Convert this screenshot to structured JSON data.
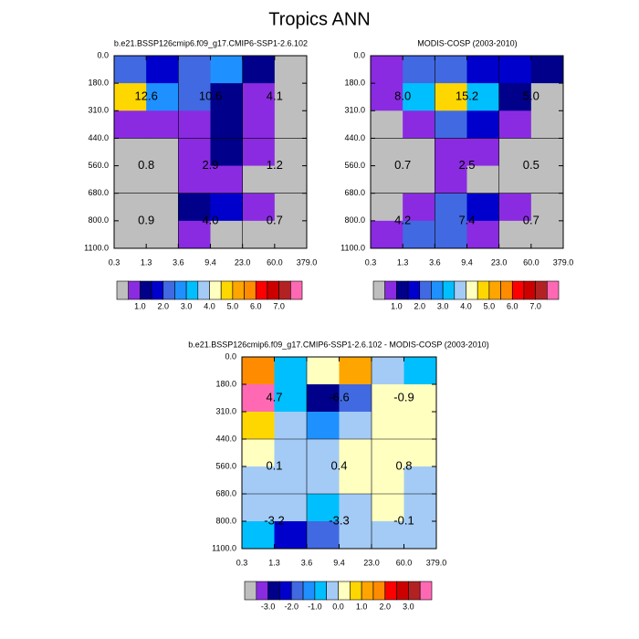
{
  "title": "Tropics ANN",
  "chart_data": [
    {
      "type": "heatmap",
      "title": "b.e21.BSSP126cmip6.f09_g17.CMIP6-SSP1-2.6.102",
      "x_edges": [
        "0.3",
        "1.3",
        "3.6",
        "9.4",
        "23.0",
        "60.0",
        "379.0"
      ],
      "y_edges": [
        "0.0",
        "180.0",
        "310.0",
        "440.0",
        "560.0",
        "680.0",
        "800.0",
        "1100.0"
      ],
      "cell_colors": [
        [
          "#4169e1",
          "#0000cd",
          "#4169e1",
          "#1e90ff",
          "#00008b",
          "#bebebe"
        ],
        [
          "#ffd700",
          "#1e90ff",
          "#4169e1",
          "#00008b",
          "#8a2be2",
          "#bebebe"
        ],
        [
          "#8a2be2",
          "#8a2be2",
          "#8a2be2",
          "#00008b",
          "#8a2be2",
          "#bebebe"
        ],
        [
          "#bebebe",
          "#bebebe",
          "#8a2be2",
          "#00008b",
          "#8a2be2",
          "#bebebe"
        ],
        [
          "#bebebe",
          "#bebebe",
          "#8a2be2",
          "#8a2be2",
          "#bebebe",
          "#bebebe"
        ],
        [
          "#bebebe",
          "#bebebe",
          "#00008b",
          "#0000cd",
          "#8a2be2",
          "#bebebe"
        ],
        [
          "#bebebe",
          "#bebebe",
          "#8a2be2",
          "#bebebe",
          "#bebebe",
          "#bebebe"
        ]
      ],
      "annotations": [
        [
          "12.6",
          "10.6",
          "4.1"
        ],
        [
          "0.8",
          "2.9",
          "1.2"
        ],
        [
          "0.9",
          "4.0",
          "0.7"
        ]
      ],
      "colorbar": {
        "colors": [
          "#bebebe",
          "#8a2be2",
          "#00008b",
          "#0000cd",
          "#4169e1",
          "#1e90ff",
          "#00bfff",
          "#a4cbf5",
          "#ffffc0",
          "#ffd700",
          "#ffa500",
          "#ff8c00",
          "#ff0000",
          "#cd0000",
          "#b22222",
          "#ff69b4"
        ],
        "labels": [
          "1.0",
          "2.0",
          "3.0",
          "4.0",
          "5.0",
          "6.0",
          "7.0"
        ]
      }
    },
    {
      "type": "heatmap",
      "title": "MODIS-COSP (2003-2010)",
      "x_edges": [
        "0.3",
        "1.3",
        "3.6",
        "9.4",
        "23.0",
        "60.0",
        "379.0"
      ],
      "y_edges": [
        "0.0",
        "180.0",
        "310.0",
        "440.0",
        "560.0",
        "680.0",
        "800.0",
        "1100.0"
      ],
      "cell_colors": [
        [
          "#8a2be2",
          "#4169e1",
          "#4169e1",
          "#0000cd",
          "#0000cd",
          "#00008b"
        ],
        [
          "#8a2be2",
          "#00bfff",
          "#ffd700",
          "#00bfff",
          "#00008b",
          "#bebebe"
        ],
        [
          "#bebebe",
          "#8a2be2",
          "#4169e1",
          "#0000cd",
          "#8a2be2",
          "#bebebe"
        ],
        [
          "#bebebe",
          "#bebebe",
          "#8a2be2",
          "#8a2be2",
          "#bebebe",
          "#bebebe"
        ],
        [
          "#bebebe",
          "#bebebe",
          "#8a2be2",
          "#bebebe",
          "#bebebe",
          "#bebebe"
        ],
        [
          "#bebebe",
          "#8a2be2",
          "#4169e1",
          "#0000cd",
          "#8a2be2",
          "#bebebe"
        ],
        [
          "#8a2be2",
          "#4169e1",
          "#4169e1",
          "#8a2be2",
          "#bebebe",
          "#bebebe"
        ]
      ],
      "annotations": [
        [
          "8.0",
          "15.2",
          "5.0"
        ],
        [
          "0.7",
          "2.5",
          "0.5"
        ],
        [
          "4.2",
          "7.4",
          "0.7"
        ]
      ],
      "colorbar": {
        "colors": [
          "#bebebe",
          "#8a2be2",
          "#00008b",
          "#0000cd",
          "#4169e1",
          "#1e90ff",
          "#00bfff",
          "#a4cbf5",
          "#ffffc0",
          "#ffd700",
          "#ffa500",
          "#ff8c00",
          "#ff0000",
          "#cd0000",
          "#b22222",
          "#ff69b4"
        ],
        "labels": [
          "1.0",
          "2.0",
          "3.0",
          "4.0",
          "5.0",
          "6.0",
          "7.0"
        ]
      }
    },
    {
      "type": "heatmap",
      "title": "b.e21.BSSP126cmip6.f09_g17.CMIP6-SSP1-2.6.102 - MODIS-COSP (2003-2010)",
      "x_edges": [
        "0.3",
        "1.3",
        "3.6",
        "9.4",
        "23.0",
        "60.0",
        "379.0"
      ],
      "y_edges": [
        "0.0",
        "180.0",
        "310.0",
        "440.0",
        "560.0",
        "680.0",
        "800.0",
        "1100.0"
      ],
      "cell_colors": [
        [
          "#ff8c00",
          "#00bfff",
          "#ffffc0",
          "#ffa500",
          "#a4cbf5",
          "#00bfff"
        ],
        [
          "#ff69b4",
          "#00bfff",
          "#00008b",
          "#4169e1",
          "#ffffc0",
          "#ffffc0"
        ],
        [
          "#ffd700",
          "#a4cbf5",
          "#1e90ff",
          "#a4cbf5",
          "#ffffc0",
          "#ffffc0"
        ],
        [
          "#ffffc0",
          "#a4cbf5",
          "#a4cbf5",
          "#ffffc0",
          "#ffffc0",
          "#ffffc0"
        ],
        [
          "#a4cbf5",
          "#a4cbf5",
          "#a4cbf5",
          "#ffffc0",
          "#ffffc0",
          "#a4cbf5"
        ],
        [
          "#a4cbf5",
          "#a4cbf5",
          "#00bfff",
          "#a4cbf5",
          "#ffffc0",
          "#a4cbf5"
        ],
        [
          "#00bfff",
          "#0000cd",
          "#4169e1",
          "#a4cbf5",
          "#a4cbf5",
          "#a4cbf5"
        ]
      ],
      "annotations": [
        [
          "4.7",
          "-6.6",
          "-0.9"
        ],
        [
          "0.1",
          "0.4",
          "0.8"
        ],
        [
          "-3.2",
          "-3.3",
          "-0.1"
        ]
      ],
      "colorbar": {
        "colors": [
          "#bebebe",
          "#8a2be2",
          "#00008b",
          "#0000cd",
          "#4169e1",
          "#1e90ff",
          "#00bfff",
          "#a4cbf5",
          "#ffffc0",
          "#ffd700",
          "#ffa500",
          "#ff8c00",
          "#ff0000",
          "#cd0000",
          "#b22222",
          "#ff69b4"
        ],
        "labels": [
          "-3.0",
          "-2.0",
          "-1.0",
          "0.0",
          "1.0",
          "2.0",
          "3.0"
        ]
      }
    }
  ]
}
